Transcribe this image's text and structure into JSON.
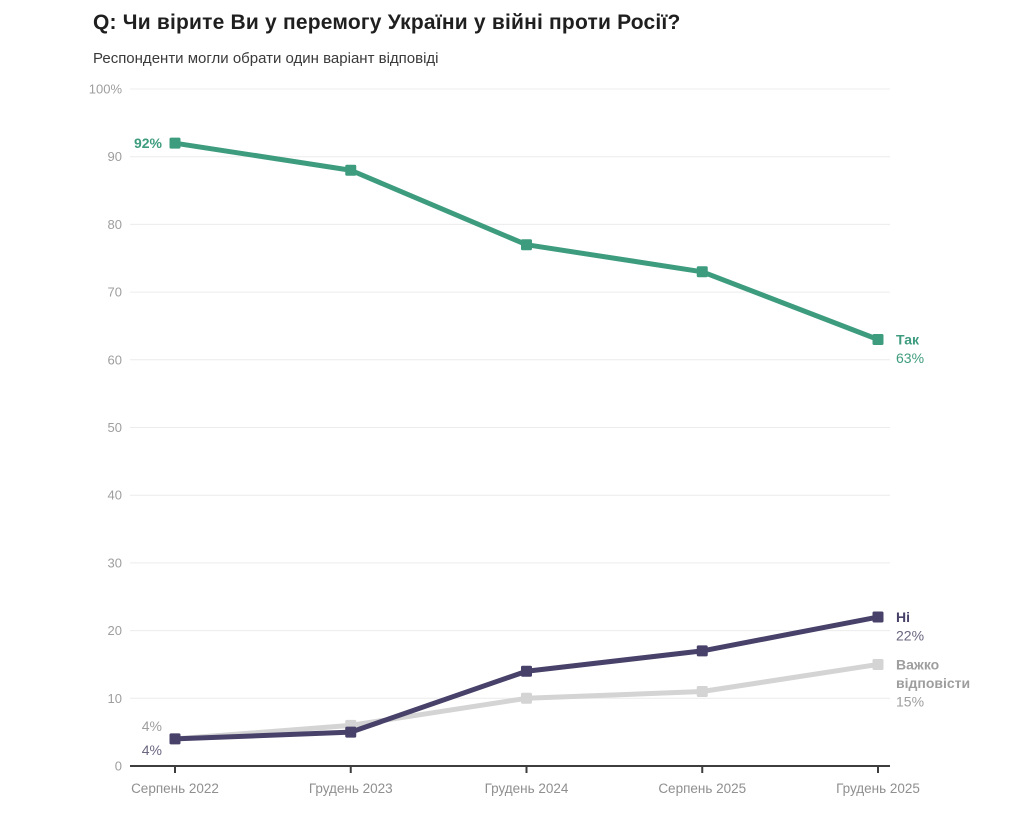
{
  "page": {
    "background": "#ffffff"
  },
  "header": {
    "title": "Q: Чи вірите Ви у перемогу України у війні проти Росії?",
    "subtitle": "Респонденти могли обрати один варіант відповіді"
  },
  "chart_data": {
    "type": "line",
    "title": "Q: Чи вірите Ви у перемогу України у війні проти Росії?",
    "subtitle": "Респонденти могли обрати один варіант відповіді",
    "categories": [
      "Серпень 2022",
      "Грудень 2023",
      "Грудень 2024",
      "Серпень 2025",
      "Грудень 2025"
    ],
    "series": [
      {
        "name": "Так",
        "name_lines": [
          "Так"
        ],
        "values": [
          92,
          88,
          77,
          73,
          63
        ],
        "color": "#3E9C7E",
        "name_color": "#3E9C7E",
        "value_color": "#3E9C7E",
        "start_color": "#3E9C7E",
        "start_label": "92%",
        "end_value_label": "63%"
      },
      {
        "name": "Ні",
        "name_lines": [
          "Ні"
        ],
        "values": [
          4,
          5,
          14,
          17,
          22
        ],
        "color": "#484169",
        "name_color": "#484169",
        "value_color": "#6B657F",
        "start_color": "#6B657F",
        "start_label": "4%",
        "end_value_label": "22%"
      },
      {
        "name": "Важко відповісти",
        "name_lines": [
          "Важко",
          "відповісти"
        ],
        "values": [
          4,
          6,
          10,
          11,
          15
        ],
        "color": "#D4D4D4",
        "name_color": "#9E9E9E",
        "value_color": "#9E9E9E",
        "start_color": "#9E9E9E",
        "start_label": "4%",
        "end_value_label": "15%"
      }
    ],
    "ylim": [
      0,
      100
    ],
    "yticks": [
      {
        "v": 0,
        "label": "0"
      },
      {
        "v": 10,
        "label": "10"
      },
      {
        "v": 20,
        "label": "20"
      },
      {
        "v": 30,
        "label": "30"
      },
      {
        "v": 40,
        "label": "40"
      },
      {
        "v": 50,
        "label": "50"
      },
      {
        "v": 60,
        "label": "60"
      },
      {
        "v": 70,
        "label": "70"
      },
      {
        "v": 80,
        "label": "80"
      },
      {
        "v": 90,
        "label": "90"
      },
      {
        "v": 100,
        "label": "100%"
      }
    ],
    "grid": "horizontal",
    "legend_position": "right-end-labels",
    "colors": {
      "grid_line": "#ECECEC",
      "x_axis_line": "#3D3D3D",
      "y_tick_text": "#9E9E9E",
      "x_tick_text": "#8F8F8F"
    }
  }
}
